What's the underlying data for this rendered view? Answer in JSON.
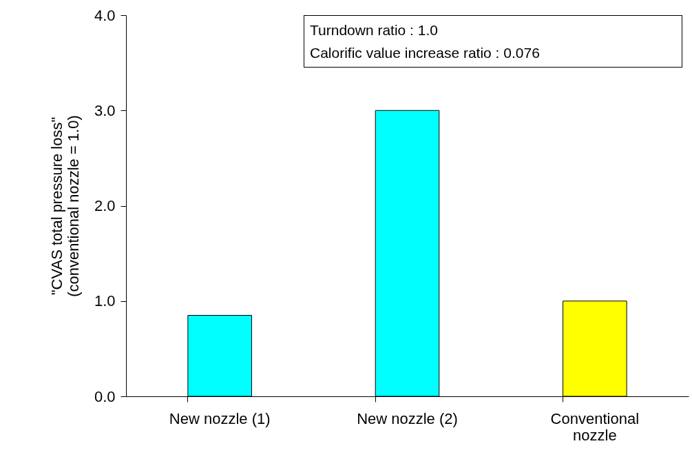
{
  "chart_data": {
    "type": "bar",
    "ylabel": "\"CVAS total pressure loss\"\n(conventional nozzle = 1.0)",
    "categories": [
      "New nozzle (1)",
      "New nozzle (2)",
      "Conventional nozzle"
    ],
    "values": [
      0.85,
      3.0,
      1.0
    ],
    "colors": [
      "#00ffff",
      "#00ffff",
      "#ffff00"
    ],
    "ylim": [
      0,
      4
    ],
    "yticks": [
      {
        "value": 0,
        "label": "0.0"
      },
      {
        "value": 1,
        "label": "1.0"
      },
      {
        "value": 2,
        "label": "2.0"
      },
      {
        "value": 3,
        "label": "3.0"
      },
      {
        "value": 4,
        "label": "4.0"
      }
    ],
    "annotations": [
      "Turndown ratio : 1.0",
      "Calorific value increase ratio : 0.076"
    ],
    "grid": false
  }
}
